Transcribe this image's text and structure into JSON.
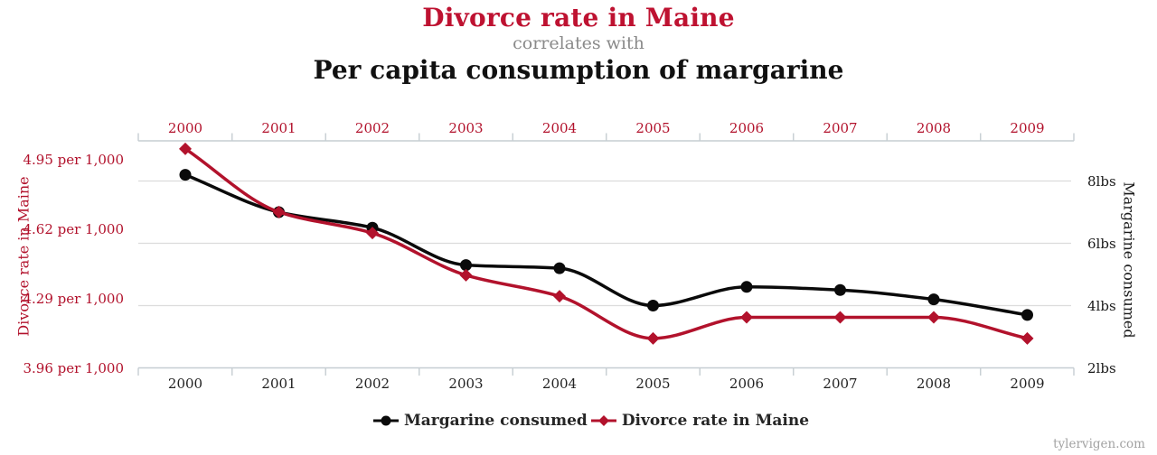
{
  "header": {
    "title": "Divorce rate in Maine",
    "connector": "correlates with",
    "subtitle": "Per capita consumption of margarine"
  },
  "chart_data": {
    "type": "line",
    "x": [
      2000,
      2001,
      2002,
      2003,
      2004,
      2005,
      2006,
      2007,
      2008,
      2009
    ],
    "series": [
      {
        "name": "Margarine consumed",
        "axis": "right",
        "color": "#0a0a0a",
        "marker": "circle",
        "unit": "lbs",
        "values": [
          8.2,
          7.0,
          6.5,
          5.3,
          5.2,
          4.0,
          4.6,
          4.5,
          4.2,
          3.7
        ]
      },
      {
        "name": "Divorce rate in Maine",
        "axis": "left",
        "color": "#b2122c",
        "marker": "diamond",
        "unit": "per 1,000",
        "values": [
          5.0,
          4.7,
          4.6,
          4.4,
          4.3,
          4.1,
          4.2,
          4.2,
          4.2,
          4.1
        ]
      }
    ],
    "left_axis": {
      "title": "Divorce rate in Maine",
      "tick_values": [
        4.95,
        4.62,
        4.29,
        3.96
      ],
      "tick_labels": [
        "4.95 per 1,000",
        "4.62 per 1,000",
        "4.29 per 1,000",
        "3.96 per 1,000"
      ]
    },
    "right_axis": {
      "title": "Margarine consumed",
      "tick_values": [
        8,
        6,
        4,
        2
      ],
      "tick_labels": [
        "8lbs",
        "6lbs",
        "4lbs",
        "2lbs"
      ]
    },
    "grid": true,
    "legend_position": "bottom"
  },
  "legend": {
    "items": [
      {
        "label": "Margarine consumed",
        "marker": "circle",
        "color": "#0a0a0a"
      },
      {
        "label": "Divorce rate in Maine",
        "marker": "diamond",
        "color": "#b2122c"
      }
    ]
  },
  "footer": {
    "credit": "tylervigen.com"
  },
  "colors": {
    "title_red": "#be1231",
    "accent_red": "#b2122c",
    "connector_gray": "#8a8a8a",
    "black_series": "#0a0a0a",
    "gridline": "#dcdcdc",
    "axis_line": "#c6cdd2",
    "bottom_year": "#222222",
    "right_tick": "#1a1a1a",
    "legend_text": "#262626",
    "credit_gray": "#a3a3a3"
  }
}
